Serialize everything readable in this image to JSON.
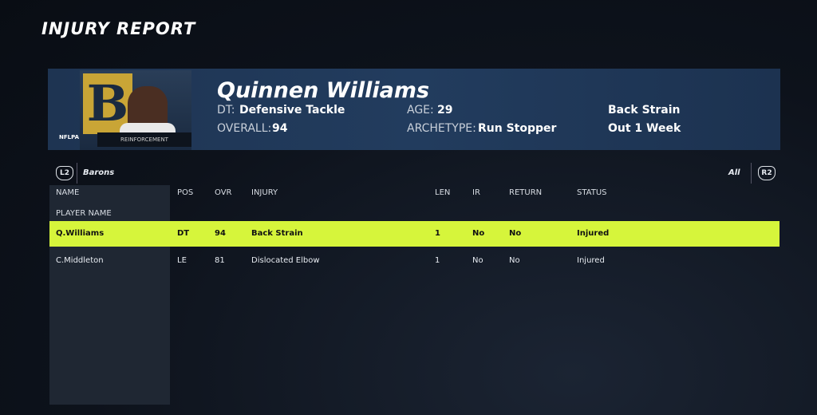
{
  "header": {
    "title": "INJURY REPORT"
  },
  "player": {
    "name": "Quinnen Williams",
    "position_abbr": "DT:",
    "position": "Defensive Tackle",
    "overall_label": "OVERALL:",
    "overall": "94",
    "age_label": "AGE:",
    "age": "29",
    "archetype_label": "ARCHETYPE:",
    "archetype": "Run Stopper",
    "injury": "Back Strain",
    "duration": "Out 1 Week",
    "badge": "NFLPA",
    "tag": "REINFORCEMENT"
  },
  "tabs": {
    "left_button": "L2",
    "team": "Barons",
    "filter": "All",
    "right_button": "R2"
  },
  "table": {
    "columns": [
      "NAME",
      "POS",
      "OVR",
      "INJURY",
      "LEN",
      "IR",
      "RETURN",
      "STATUS"
    ],
    "subheader": "PLAYER NAME",
    "rows": [
      [
        "Q.Williams",
        "DT",
        "94",
        "Back Strain",
        "1",
        "No",
        "No",
        "Injured"
      ],
      [
        "C.Middleton",
        "LE",
        "81",
        "Dislocated Elbow",
        "1",
        "No",
        "No",
        "Injured"
      ]
    ]
  }
}
